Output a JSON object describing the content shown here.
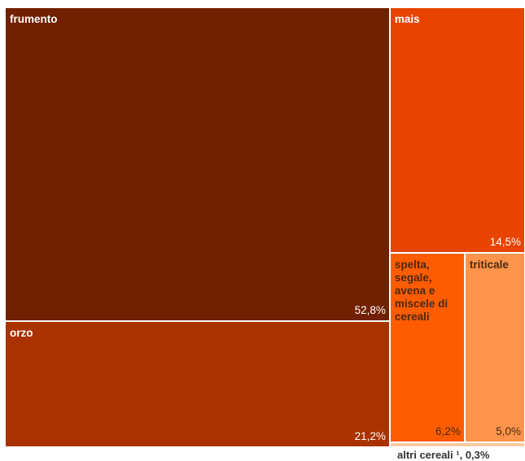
{
  "chart_data": {
    "type": "treemap",
    "items": [
      {
        "label": "frumento",
        "value_label": "52,8%",
        "value": 52.8,
        "color": "#712000",
        "text": "light"
      },
      {
        "label": "orzo",
        "value_label": "21,2%",
        "value": 21.2,
        "color": "#a93200",
        "text": "light"
      },
      {
        "label": "mais",
        "value_label": "14,5%",
        "value": 14.5,
        "color": "#e84300",
        "text": "light"
      },
      {
        "label": "spelta, segale, avena e miscele di cereali",
        "value_label": "6,2%",
        "value": 6.2,
        "color": "#ff5c00",
        "text": "dark"
      },
      {
        "label": "triticale",
        "value_label": "5,0%",
        "value": 5.0,
        "color": "#ff944a",
        "text": "dark"
      },
      {
        "label": "altri cereali ¹",
        "value_label": "0,3%",
        "value": 0.3,
        "color": "#ffcaa2",
        "text": "dark"
      }
    ],
    "outside_label": "altri cereali ¹, 0,3%"
  }
}
